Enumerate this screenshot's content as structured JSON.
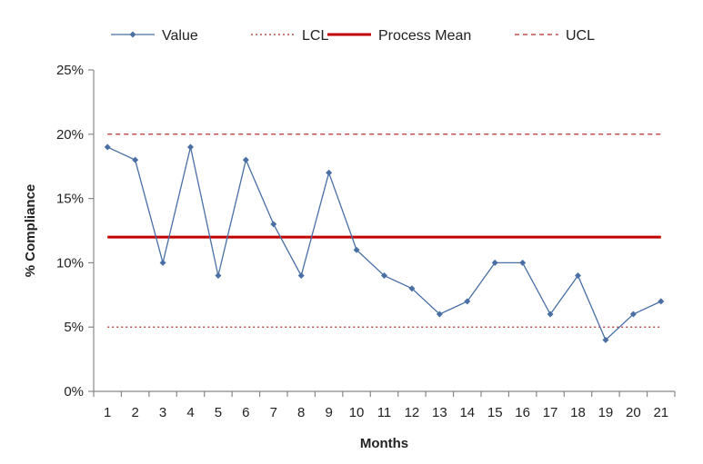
{
  "chart_data": {
    "type": "line",
    "title": "",
    "xlabel": "Months",
    "ylabel": "% Compliance",
    "categories": [
      "1",
      "2",
      "3",
      "4",
      "5",
      "6",
      "7",
      "8",
      "9",
      "10",
      "11",
      "12",
      "13",
      "14",
      "15",
      "16",
      "17",
      "18",
      "19",
      "20",
      "21"
    ],
    "ylim": [
      0,
      25
    ],
    "yticks": [
      0,
      5,
      10,
      15,
      20,
      25
    ],
    "ytick_labels": [
      "0%",
      "5%",
      "10%",
      "15%",
      "20%",
      "25%"
    ],
    "grid": false,
    "legend": "top",
    "series": [
      {
        "name": "Value",
        "style": "line-marker",
        "color": "#4a6fa5",
        "values": [
          19,
          18,
          10,
          19,
          9,
          18,
          13,
          9,
          17,
          11,
          9,
          8,
          6,
          7,
          10,
          10,
          6,
          9,
          4,
          6,
          7
        ]
      },
      {
        "name": "LCL",
        "style": "dotted",
        "color": "#c0504d",
        "values": [
          5,
          5,
          5,
          5,
          5,
          5,
          5,
          5,
          5,
          5,
          5,
          5,
          5,
          5,
          5,
          5,
          5,
          5,
          5,
          5,
          5
        ]
      },
      {
        "name": "Process Mean",
        "style": "solid-thick",
        "color": "#c00000",
        "values": [
          12,
          12,
          12,
          12,
          12,
          12,
          12,
          12,
          12,
          12,
          12,
          12,
          12,
          12,
          12,
          12,
          12,
          12,
          12,
          12,
          12
        ]
      },
      {
        "name": "UCL",
        "style": "dashed",
        "color": "#c0504d",
        "values": [
          20,
          20,
          20,
          20,
          20,
          20,
          20,
          20,
          20,
          20,
          20,
          20,
          20,
          20,
          20,
          20,
          20,
          20,
          20,
          20,
          20
        ]
      }
    ]
  }
}
